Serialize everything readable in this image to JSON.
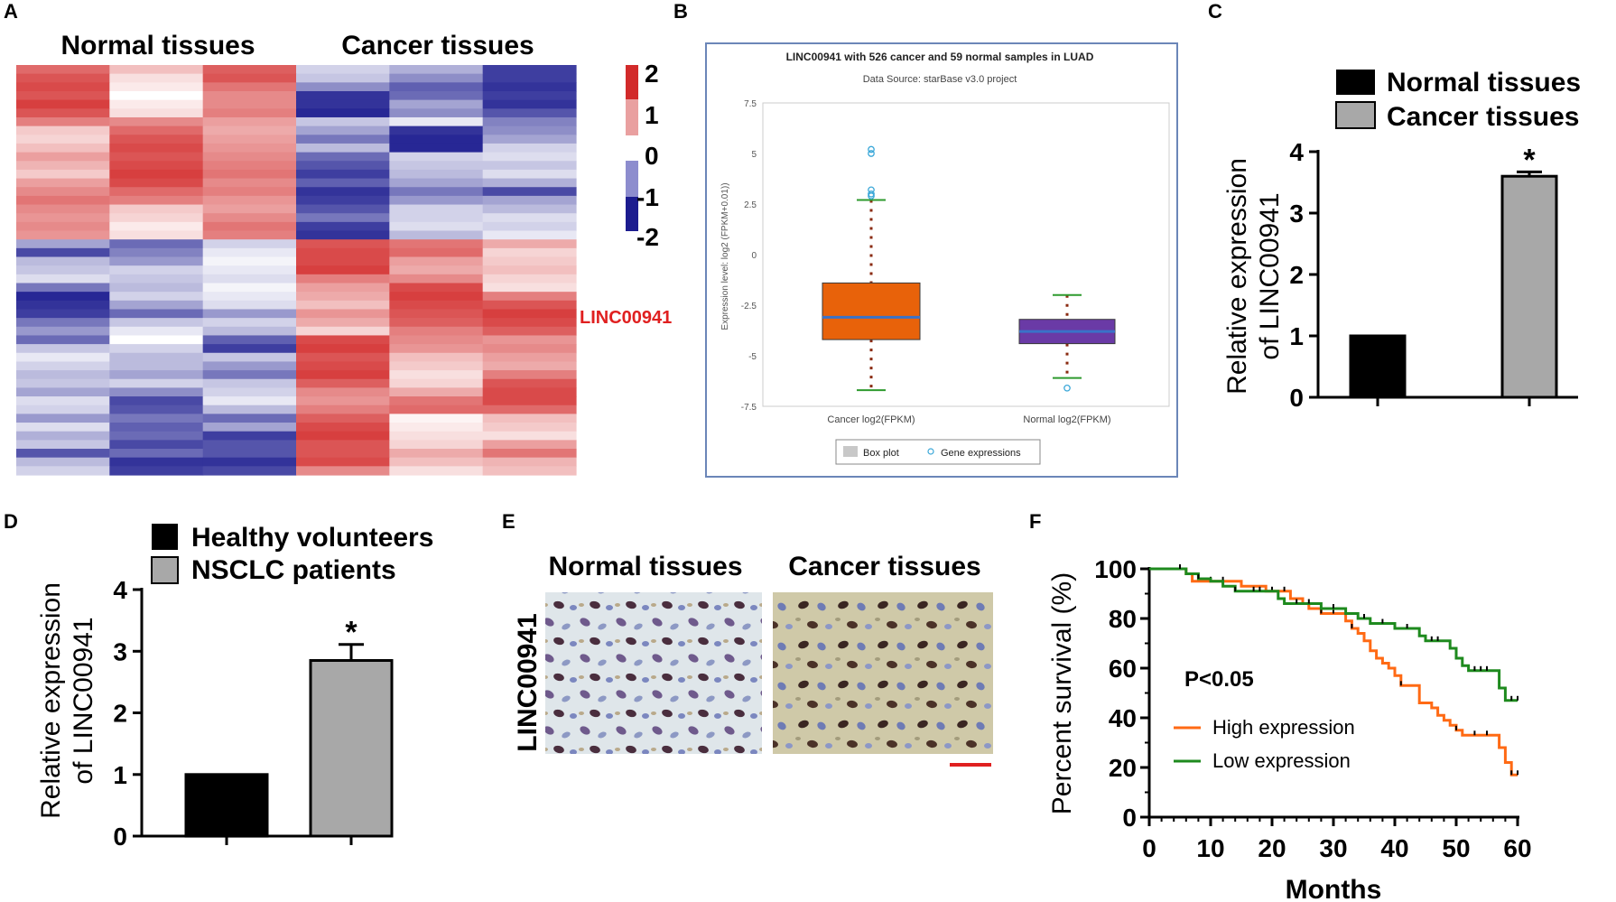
{
  "panels": {
    "A": "A",
    "B": "B",
    "C": "C",
    "D": "D",
    "E": "E",
    "F": "F"
  },
  "colors": {
    "red": "#d22a2a",
    "blue": "#1c1c8f",
    "white": "#ffffff",
    "orange": "#ff6a14",
    "green": "#1e8a1e",
    "gray": "#a8a8a8",
    "black": "#000000",
    "box_orange": "#e8620a",
    "box_purple": "#6a3aa6",
    "median_blue": "#3a72c8",
    "whisker_green": "#2e9a2e"
  },
  "chart_data": [
    {
      "panel": "A",
      "type": "heatmap",
      "group_labels": [
        "Normal tissues",
        "Cancer tissues"
      ],
      "highlight_label": "LINC00941",
      "colorbar_ticks": [
        "2",
        "1",
        "0",
        "-1",
        "-2"
      ],
      "range": [
        -2,
        2
      ],
      "cols": 6,
      "values": [
        [
          1.4,
          0.6,
          1.5,
          -0.4,
          -0.7,
          -1.7
        ],
        [
          1.6,
          0.3,
          1.6,
          -0.5,
          -1.0,
          -1.7
        ],
        [
          1.7,
          0.2,
          1.3,
          -1.0,
          -1.4,
          -1.8
        ],
        [
          1.6,
          0.0,
          1.1,
          -1.8,
          -1.3,
          -1.7
        ],
        [
          1.8,
          0.2,
          1.1,
          -1.8,
          -0.8,
          -1.8
        ],
        [
          1.6,
          0.3,
          1.2,
          -1.9,
          -1.0,
          -1.5
        ],
        [
          1.2,
          1.1,
          0.9,
          -0.5,
          -0.2,
          -1.1
        ],
        [
          0.5,
          1.4,
          0.8,
          -0.8,
          -1.8,
          -1.0
        ],
        [
          0.4,
          1.6,
          0.9,
          -1.2,
          -1.9,
          -0.8
        ],
        [
          0.6,
          1.7,
          1.0,
          -0.6,
          -1.9,
          -0.4
        ],
        [
          0.9,
          1.6,
          1.1,
          -1.3,
          -0.4,
          -0.3
        ],
        [
          0.7,
          1.7,
          1.2,
          -1.5,
          -0.5,
          -0.5
        ],
        [
          0.5,
          1.8,
          1.3,
          -1.7,
          -0.6,
          -0.3
        ],
        [
          0.9,
          1.7,
          1.1,
          -1.4,
          -0.8,
          -0.7
        ],
        [
          1.1,
          1.4,
          1.2,
          -1.8,
          -1.2,
          -1.6
        ],
        [
          1.3,
          1.2,
          1.0,
          -1.7,
          -0.9,
          -0.8
        ],
        [
          1.1,
          0.5,
          0.9,
          -1.5,
          -0.4,
          -0.6
        ],
        [
          1.0,
          0.4,
          1.1,
          -1.2,
          -0.4,
          -0.3
        ],
        [
          1.1,
          0.2,
          1.3,
          -1.7,
          -0.3,
          -0.4
        ],
        [
          1.0,
          0.3,
          1.2,
          -1.8,
          -0.6,
          -0.2
        ],
        [
          -0.8,
          -1.3,
          -0.4,
          1.6,
          1.3,
          0.8
        ],
        [
          -1.6,
          -1.1,
          -0.2,
          1.7,
          1.4,
          0.4
        ],
        [
          -0.6,
          -0.9,
          -0.1,
          1.7,
          0.9,
          0.5
        ],
        [
          -0.5,
          -0.4,
          -0.2,
          1.8,
          0.8,
          0.6
        ],
        [
          -0.3,
          -0.5,
          -0.3,
          1.2,
          1.1,
          0.4
        ],
        [
          -1.2,
          -0.6,
          -0.1,
          0.9,
          1.7,
          0.3
        ],
        [
          -1.9,
          -0.4,
          -0.2,
          0.8,
          1.8,
          1.2
        ],
        [
          -1.8,
          -0.8,
          -0.3,
          0.6,
          1.7,
          1.6
        ],
        [
          -1.7,
          -1.3,
          -0.9,
          1.0,
          1.6,
          1.8
        ],
        [
          -1.2,
          -0.5,
          -0.4,
          0.8,
          1.5,
          1.7
        ],
        [
          -0.9,
          -0.2,
          -0.6,
          0.4,
          1.2,
          1.5
        ],
        [
          -1.3,
          0.0,
          -1.4,
          1.7,
          1.1,
          1.0
        ],
        [
          -0.5,
          -0.4,
          -1.7,
          1.8,
          1.0,
          1.1
        ],
        [
          -0.2,
          -0.6,
          -0.5,
          1.6,
          0.6,
          0.9
        ],
        [
          -0.4,
          -0.6,
          -0.9,
          1.7,
          0.5,
          0.8
        ],
        [
          -0.6,
          -0.8,
          -1.2,
          1.8,
          0.3,
          1.2
        ],
        [
          -0.5,
          -0.4,
          -0.5,
          1.5,
          0.4,
          1.6
        ],
        [
          -0.8,
          -1.0,
          -0.4,
          1.1,
          0.8,
          1.7
        ],
        [
          -0.3,
          -1.6,
          -0.2,
          1.0,
          1.3,
          1.7
        ],
        [
          -0.4,
          -1.5,
          -0.6,
          1.2,
          1.4,
          1.4
        ],
        [
          -0.9,
          -1.2,
          -1.3,
          1.5,
          0.1,
          0.6
        ],
        [
          -0.3,
          -1.4,
          -0.8,
          1.7,
          0.2,
          0.5
        ],
        [
          -0.7,
          -1.3,
          -1.7,
          1.8,
          0.3,
          0.3
        ],
        [
          -0.5,
          -1.6,
          -1.5,
          1.6,
          0.4,
          0.9
        ],
        [
          -1.5,
          -1.3,
          -1.5,
          1.6,
          0.8,
          1.3
        ],
        [
          -0.6,
          -1.8,
          -1.8,
          1.7,
          0.6,
          0.7
        ],
        [
          -0.4,
          -1.7,
          -1.6,
          1.1,
          0.3,
          0.6
        ]
      ]
    },
    {
      "panel": "B",
      "type": "box",
      "title": "LINC00941 with 526 cancer and 59 normal samples in LUAD",
      "subtitle": "Data Source: starBase v3.0 project",
      "ylabel": "Expression level: log2 (FPKM+0.01))",
      "ylim": [
        -7.5,
        7.5
      ],
      "yticks": [
        "7.5",
        "5",
        "2.5",
        "0",
        "-2.5",
        "-5",
        "-7.5"
      ],
      "ytick_values": [
        7.5,
        5,
        2.5,
        0,
        -2.5,
        -5,
        -7.5
      ],
      "categories": [
        "Cancer log2(FPKM)",
        "Normal log2(FPKM)"
      ],
      "boxes": [
        {
          "q1": -4.2,
          "median": -3.1,
          "q3": -1.4,
          "whisker_low": -6.7,
          "whisker_high": 2.7,
          "outliers": [
            5.0,
            5.2,
            3.2,
            3.0,
            2.9
          ]
        },
        {
          "q1": -4.4,
          "median": -3.8,
          "q3": -3.2,
          "whisker_low": -6.1,
          "whisker_high": -2.0,
          "outliers": [
            -6.6
          ]
        }
      ],
      "legend": [
        "Box plot",
        "Gene expressions"
      ]
    },
    {
      "panel": "C",
      "type": "bar",
      "categories": [
        "Normal tissues",
        "Cancer tissues"
      ],
      "values": [
        1.0,
        3.6
      ],
      "errors": [
        0,
        0.07
      ],
      "ylabel": "Relative expression of LINC00941",
      "ylabel_lines": [
        "Relative expression",
        "of LINC00941"
      ],
      "ylim": [
        0,
        4
      ],
      "yticks": [
        "0",
        "1",
        "2",
        "3",
        "4"
      ],
      "significance": "*",
      "legend": [
        "Normal tissues",
        "Cancer tissues"
      ]
    },
    {
      "panel": "D",
      "type": "bar",
      "categories": [
        "Healthy volunteers",
        "NSCLC patients"
      ],
      "values": [
        1.0,
        2.85
      ],
      "errors": [
        0,
        0.26
      ],
      "ylabel": "Relative expression of LINC00941",
      "ylabel_lines": [
        "Relative expression",
        "of LINC00941"
      ],
      "ylim": [
        0,
        4
      ],
      "yticks": [
        "0",
        "1",
        "2",
        "3",
        "4"
      ],
      "significance": "*",
      "legend": [
        "Healthy volunteers",
        "NSCLC patients"
      ]
    },
    {
      "panel": "E",
      "type": "image",
      "row_label": "LINC00941",
      "column_labels": [
        "Normal tissues",
        "Cancer tissues"
      ]
    },
    {
      "panel": "F",
      "type": "line",
      "xlabel": "Months",
      "ylabel": "Percent survival (%)",
      "xlim": [
        0,
        60
      ],
      "ylim": [
        0,
        100
      ],
      "xticks": [
        "0",
        "10",
        "20",
        "30",
        "40",
        "50",
        "60"
      ],
      "yticks": [
        "0",
        "20",
        "40",
        "60",
        "80",
        "100"
      ],
      "annotation": "P<0.05",
      "series": [
        {
          "name": "High expression",
          "color": "#ff6a14",
          "steps": [
            [
              0,
              100
            ],
            [
              5,
              100
            ],
            [
              6,
              98
            ],
            [
              7,
              95
            ],
            [
              14,
              95
            ],
            [
              15,
              93
            ],
            [
              18,
              93
            ],
            [
              19,
              91
            ],
            [
              22,
              91
            ],
            [
              23,
              88
            ],
            [
              25,
              86
            ],
            [
              26,
              84
            ],
            [
              28,
              82
            ],
            [
              31,
              82
            ],
            [
              32,
              79
            ],
            [
              33,
              76
            ],
            [
              34,
              74
            ],
            [
              35,
              71
            ],
            [
              36,
              67
            ],
            [
              37,
              64
            ],
            [
              38,
              62
            ],
            [
              39,
              60
            ],
            [
              40,
              57
            ],
            [
              41,
              53
            ],
            [
              43,
              53
            ],
            [
              44,
              46
            ],
            [
              46,
              44
            ],
            [
              47,
              41
            ],
            [
              48,
              39
            ],
            [
              49,
              37
            ],
            [
              50,
              35
            ],
            [
              51,
              33
            ],
            [
              56,
              33
            ],
            [
              57,
              28
            ],
            [
              58,
              22
            ],
            [
              59,
              17
            ],
            [
              60,
              17
            ]
          ],
          "censor_x": [
            10,
            12,
            20,
            22,
            28,
            30,
            33,
            41,
            50,
            53,
            55,
            59,
            60
          ]
        },
        {
          "name": "Low expression",
          "color": "#1e8a1e",
          "steps": [
            [
              0,
              100
            ],
            [
              5,
              100
            ],
            [
              6,
              98
            ],
            [
              8,
              96
            ],
            [
              10,
              95
            ],
            [
              12,
              93
            ],
            [
              14,
              91
            ],
            [
              20,
              91
            ],
            [
              21,
              88
            ],
            [
              22,
              86
            ],
            [
              27,
              86
            ],
            [
              28,
              84
            ],
            [
              31,
              84
            ],
            [
              32,
              82
            ],
            [
              34,
              80
            ],
            [
              36,
              78
            ],
            [
              39,
              78
            ],
            [
              40,
              76
            ],
            [
              43,
              76
            ],
            [
              44,
              73
            ],
            [
              45,
              71
            ],
            [
              48,
              71
            ],
            [
              49,
              68
            ],
            [
              50,
              64
            ],
            [
              51,
              61
            ],
            [
              52,
              59
            ],
            [
              56,
              59
            ],
            [
              57,
              52
            ],
            [
              58,
              47
            ],
            [
              60,
              47
            ]
          ],
          "censor_x": [
            5,
            8,
            14,
            17,
            18,
            24,
            26,
            30,
            35,
            38,
            42,
            46,
            47,
            53,
            54,
            55,
            59,
            60
          ]
        }
      ]
    }
  ]
}
